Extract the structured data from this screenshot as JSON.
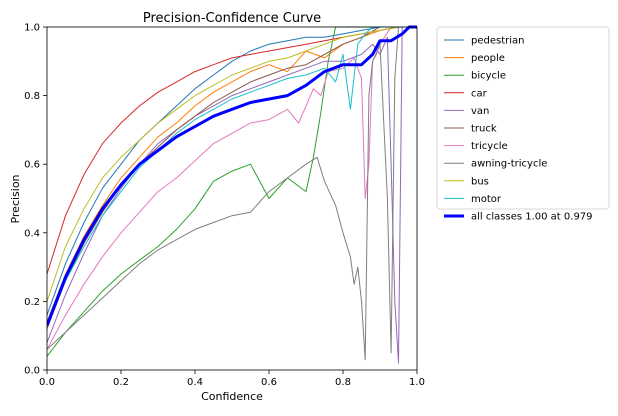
{
  "chart_data": {
    "type": "line",
    "title": "Precision-Confidence Curve",
    "xlabel": "Confidence",
    "ylabel": "Precision",
    "xlim": [
      0,
      1
    ],
    "ylim": [
      0,
      1
    ],
    "x_ticks": [
      "0.0",
      "0.2",
      "0.4",
      "0.6",
      "0.8",
      "1.0"
    ],
    "y_ticks": [
      "0.0",
      "0.2",
      "0.4",
      "0.6",
      "0.8",
      "1.0"
    ],
    "grid": false,
    "legend_position": "outside-right",
    "series": [
      {
        "name": "pedestrian",
        "color": "#1f77b4",
        "points": [
          [
            0.0,
            0.16
          ],
          [
            0.05,
            0.31
          ],
          [
            0.1,
            0.43
          ],
          [
            0.15,
            0.53
          ],
          [
            0.2,
            0.6
          ],
          [
            0.25,
            0.67
          ],
          [
            0.3,
            0.72
          ],
          [
            0.35,
            0.77
          ],
          [
            0.4,
            0.82
          ],
          [
            0.45,
            0.86
          ],
          [
            0.5,
            0.9
          ],
          [
            0.55,
            0.93
          ],
          [
            0.6,
            0.95
          ],
          [
            0.65,
            0.96
          ],
          [
            0.7,
            0.97
          ],
          [
            0.75,
            0.97
          ],
          [
            0.8,
            0.98
          ],
          [
            0.85,
            0.99
          ],
          [
            0.9,
            1.0
          ],
          [
            0.95,
            1.0
          ],
          [
            1.0,
            1.0
          ]
        ]
      },
      {
        "name": "people",
        "color": "#ff7f0e",
        "points": [
          [
            0.0,
            0.14
          ],
          [
            0.05,
            0.28
          ],
          [
            0.1,
            0.39
          ],
          [
            0.15,
            0.48
          ],
          [
            0.2,
            0.56
          ],
          [
            0.25,
            0.62
          ],
          [
            0.3,
            0.68
          ],
          [
            0.35,
            0.72
          ],
          [
            0.4,
            0.77
          ],
          [
            0.45,
            0.81
          ],
          [
            0.5,
            0.84
          ],
          [
            0.55,
            0.87
          ],
          [
            0.6,
            0.89
          ],
          [
            0.65,
            0.87
          ],
          [
            0.7,
            0.93
          ],
          [
            0.75,
            0.91
          ],
          [
            0.8,
            0.95
          ],
          [
            0.85,
            0.97
          ],
          [
            0.9,
            0.99
          ],
          [
            0.95,
            1.0
          ],
          [
            1.0,
            1.0
          ]
        ]
      },
      {
        "name": "bicycle",
        "color": "#2ca02c",
        "points": [
          [
            0.0,
            0.04
          ],
          [
            0.05,
            0.11
          ],
          [
            0.1,
            0.17
          ],
          [
            0.15,
            0.23
          ],
          [
            0.2,
            0.28
          ],
          [
            0.25,
            0.32
          ],
          [
            0.3,
            0.36
          ],
          [
            0.35,
            0.41
          ],
          [
            0.4,
            0.47
          ],
          [
            0.45,
            0.55
          ],
          [
            0.5,
            0.58
          ],
          [
            0.55,
            0.6
          ],
          [
            0.6,
            0.5
          ],
          [
            0.65,
            0.56
          ],
          [
            0.7,
            0.52
          ],
          [
            0.72,
            0.62
          ],
          [
            0.74,
            0.75
          ],
          [
            0.76,
            0.9
          ],
          [
            0.78,
            1.0
          ],
          [
            1.0,
            1.0
          ]
        ]
      },
      {
        "name": "car",
        "color": "#d62728",
        "points": [
          [
            0.0,
            0.28
          ],
          [
            0.05,
            0.45
          ],
          [
            0.1,
            0.57
          ],
          [
            0.15,
            0.66
          ],
          [
            0.2,
            0.72
          ],
          [
            0.25,
            0.77
          ],
          [
            0.3,
            0.81
          ],
          [
            0.35,
            0.84
          ],
          [
            0.4,
            0.87
          ],
          [
            0.45,
            0.89
          ],
          [
            0.5,
            0.91
          ],
          [
            0.55,
            0.92
          ],
          [
            0.6,
            0.93
          ],
          [
            0.65,
            0.94
          ],
          [
            0.7,
            0.95
          ],
          [
            0.75,
            0.96
          ],
          [
            0.8,
            0.97
          ],
          [
            0.85,
            0.98
          ],
          [
            0.9,
            0.99
          ],
          [
            0.95,
            1.0
          ],
          [
            1.0,
            1.0
          ]
        ]
      },
      {
        "name": "van",
        "color": "#9467bd",
        "points": [
          [
            0.0,
            0.08
          ],
          [
            0.05,
            0.22
          ],
          [
            0.1,
            0.34
          ],
          [
            0.15,
            0.45
          ],
          [
            0.2,
            0.53
          ],
          [
            0.25,
            0.6
          ],
          [
            0.3,
            0.66
          ],
          [
            0.35,
            0.7
          ],
          [
            0.4,
            0.74
          ],
          [
            0.45,
            0.77
          ],
          [
            0.5,
            0.8
          ],
          [
            0.55,
            0.82
          ],
          [
            0.6,
            0.84
          ],
          [
            0.65,
            0.86
          ],
          [
            0.7,
            0.88
          ],
          [
            0.75,
            0.9
          ],
          [
            0.8,
            0.9
          ],
          [
            0.85,
            0.92
          ],
          [
            0.88,
            0.95
          ],
          [
            0.9,
            0.92
          ],
          [
            0.92,
            0.97
          ],
          [
            0.93,
            0.6
          ],
          [
            0.94,
            0.2
          ],
          [
            0.95,
            0.02
          ],
          [
            0.96,
            1.0
          ],
          [
            1.0,
            1.0
          ]
        ]
      },
      {
        "name": "truck",
        "color": "#8c564b",
        "points": [
          [
            0.0,
            0.12
          ],
          [
            0.05,
            0.26
          ],
          [
            0.1,
            0.37
          ],
          [
            0.15,
            0.46
          ],
          [
            0.2,
            0.54
          ],
          [
            0.25,
            0.6
          ],
          [
            0.3,
            0.65
          ],
          [
            0.35,
            0.7
          ],
          [
            0.4,
            0.74
          ],
          [
            0.45,
            0.78
          ],
          [
            0.5,
            0.81
          ],
          [
            0.55,
            0.84
          ],
          [
            0.6,
            0.86
          ],
          [
            0.65,
            0.88
          ],
          [
            0.7,
            0.89
          ],
          [
            0.75,
            0.92
          ],
          [
            0.8,
            0.95
          ],
          [
            0.85,
            0.97
          ],
          [
            0.9,
            1.0
          ],
          [
            1.0,
            1.0
          ]
        ]
      },
      {
        "name": "tricycle",
        "color": "#e377c2",
        "points": [
          [
            0.0,
            0.06
          ],
          [
            0.05,
            0.16
          ],
          [
            0.1,
            0.25
          ],
          [
            0.15,
            0.33
          ],
          [
            0.2,
            0.4
          ],
          [
            0.25,
            0.46
          ],
          [
            0.3,
            0.52
          ],
          [
            0.35,
            0.56
          ],
          [
            0.4,
            0.61
          ],
          [
            0.45,
            0.66
          ],
          [
            0.5,
            0.69
          ],
          [
            0.55,
            0.72
          ],
          [
            0.6,
            0.73
          ],
          [
            0.65,
            0.76
          ],
          [
            0.68,
            0.72
          ],
          [
            0.7,
            0.77
          ],
          [
            0.72,
            0.82
          ],
          [
            0.74,
            0.8
          ],
          [
            0.76,
            0.87
          ],
          [
            0.8,
            0.88
          ],
          [
            0.83,
            0.91
          ],
          [
            0.85,
            0.85
          ],
          [
            0.86,
            0.5
          ],
          [
            0.87,
            0.6
          ],
          [
            0.88,
            0.9
          ],
          [
            0.9,
            0.95
          ],
          [
            0.93,
            1.0
          ],
          [
            1.0,
            1.0
          ]
        ]
      },
      {
        "name": "awning-tricycle",
        "color": "#7f7f7f",
        "points": [
          [
            0.0,
            0.06
          ],
          [
            0.05,
            0.11
          ],
          [
            0.1,
            0.16
          ],
          [
            0.15,
            0.21
          ],
          [
            0.2,
            0.26
          ],
          [
            0.25,
            0.31
          ],
          [
            0.3,
            0.35
          ],
          [
            0.35,
            0.38
          ],
          [
            0.4,
            0.41
          ],
          [
            0.45,
            0.43
          ],
          [
            0.5,
            0.45
          ],
          [
            0.55,
            0.46
          ],
          [
            0.6,
            0.52
          ],
          [
            0.65,
            0.56
          ],
          [
            0.7,
            0.6
          ],
          [
            0.73,
            0.62
          ],
          [
            0.75,
            0.55
          ],
          [
            0.78,
            0.48
          ],
          [
            0.8,
            0.4
          ],
          [
            0.82,
            0.33
          ],
          [
            0.83,
            0.25
          ],
          [
            0.84,
            0.3
          ],
          [
            0.85,
            0.2
          ],
          [
            0.86,
            0.03
          ],
          [
            0.87,
            0.8
          ],
          [
            0.88,
            0.9
          ],
          [
            0.89,
            0.92
          ],
          [
            0.9,
            0.95
          ],
          [
            0.92,
            0.5
          ],
          [
            0.93,
            0.05
          ],
          [
            0.94,
            0.85
          ],
          [
            0.95,
            1.0
          ],
          [
            1.0,
            1.0
          ]
        ]
      },
      {
        "name": "bus",
        "color": "#bcbd22",
        "points": [
          [
            0.0,
            0.2
          ],
          [
            0.05,
            0.36
          ],
          [
            0.1,
            0.47
          ],
          [
            0.15,
            0.56
          ],
          [
            0.2,
            0.62
          ],
          [
            0.25,
            0.67
          ],
          [
            0.3,
            0.72
          ],
          [
            0.35,
            0.76
          ],
          [
            0.4,
            0.8
          ],
          [
            0.45,
            0.83
          ],
          [
            0.5,
            0.86
          ],
          [
            0.55,
            0.88
          ],
          [
            0.6,
            0.9
          ],
          [
            0.65,
            0.91
          ],
          [
            0.7,
            0.93
          ],
          [
            0.75,
            0.95
          ],
          [
            0.8,
            0.97
          ],
          [
            0.85,
            0.98
          ],
          [
            0.9,
            0.99
          ],
          [
            0.95,
            1.0
          ],
          [
            1.0,
            1.0
          ]
        ]
      },
      {
        "name": "motor",
        "color": "#17becf",
        "points": [
          [
            0.0,
            0.13
          ],
          [
            0.05,
            0.26
          ],
          [
            0.1,
            0.36
          ],
          [
            0.15,
            0.45
          ],
          [
            0.2,
            0.52
          ],
          [
            0.25,
            0.59
          ],
          [
            0.3,
            0.64
          ],
          [
            0.35,
            0.69
          ],
          [
            0.4,
            0.73
          ],
          [
            0.45,
            0.76
          ],
          [
            0.5,
            0.79
          ],
          [
            0.55,
            0.81
          ],
          [
            0.6,
            0.83
          ],
          [
            0.65,
            0.85
          ],
          [
            0.7,
            0.86
          ],
          [
            0.75,
            0.88
          ],
          [
            0.78,
            0.84
          ],
          [
            0.8,
            0.92
          ],
          [
            0.82,
            0.76
          ],
          [
            0.84,
            0.95
          ],
          [
            0.86,
            0.98
          ],
          [
            0.88,
            1.0
          ],
          [
            1.0,
            1.0
          ]
        ]
      },
      {
        "name": "all classes 1.00 at 0.979",
        "color": "#0000ff",
        "bold": true,
        "points": [
          [
            0.0,
            0.13
          ],
          [
            0.05,
            0.27
          ],
          [
            0.1,
            0.38
          ],
          [
            0.15,
            0.47
          ],
          [
            0.2,
            0.54
          ],
          [
            0.25,
            0.6
          ],
          [
            0.3,
            0.64
          ],
          [
            0.35,
            0.68
          ],
          [
            0.4,
            0.71
          ],
          [
            0.45,
            0.74
          ],
          [
            0.5,
            0.76
          ],
          [
            0.55,
            0.78
          ],
          [
            0.6,
            0.79
          ],
          [
            0.65,
            0.8
          ],
          [
            0.7,
            0.83
          ],
          [
            0.75,
            0.87
          ],
          [
            0.8,
            0.89
          ],
          [
            0.85,
            0.89
          ],
          [
            0.88,
            0.92
          ],
          [
            0.9,
            0.96
          ],
          [
            0.93,
            0.96
          ],
          [
            0.96,
            0.98
          ],
          [
            0.979,
            1.0
          ],
          [
            1.0,
            1.0
          ]
        ]
      }
    ]
  }
}
